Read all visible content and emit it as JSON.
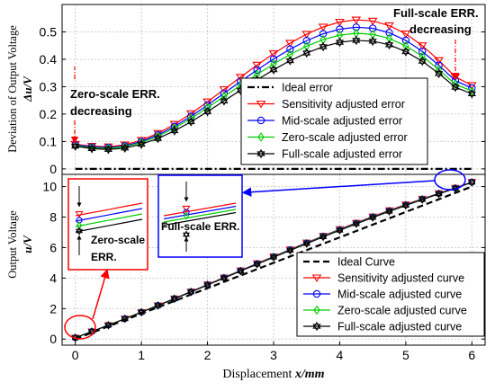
{
  "colors": {
    "sensitivity": "#ff0000",
    "midscale": "#0000ff",
    "zeroscale": "#00cc00",
    "fullscale": "#000000",
    "ideal": "#000000",
    "annotation_red": "#ff0000",
    "annotation_blue": "#0000ff"
  },
  "chart_data": [
    {
      "type": "line",
      "panel": "top",
      "ylabel_line1": "Deviation of Output Voltage",
      "ylabel_line2": "Δu/V",
      "xlim": [
        -0.2,
        6.2
      ],
      "ylim": [
        -0.02,
        0.6
      ],
      "y_ticks": [
        0,
        0.1,
        0.2,
        0.3,
        0.4,
        0.5
      ],
      "y_tick_labels": [
        "0",
        "0.1",
        "0.2",
        "0.3",
        "0.4",
        "0.5"
      ],
      "grid": true,
      "legend_placement": "center-right",
      "x": [
        0,
        0.25,
        0.5,
        0.75,
        1.0,
        1.25,
        1.5,
        1.75,
        2.0,
        2.25,
        2.5,
        2.75,
        3.0,
        3.25,
        3.5,
        3.75,
        4.0,
        4.25,
        4.5,
        4.75,
        5.0,
        5.25,
        5.5,
        5.75,
        6.0
      ],
      "series": [
        {
          "name": "Ideal error",
          "key": "ideal",
          "style": "dashdot",
          "marker": "none",
          "values": [
            0,
            0,
            0,
            0,
            0,
            0,
            0,
            0,
            0,
            0,
            0,
            0,
            0,
            0,
            0,
            0,
            0,
            0,
            0,
            0,
            0,
            0,
            0,
            0,
            0
          ]
        },
        {
          "name": "Sensitivity adjusted error",
          "key": "sensitivity",
          "style": "solid",
          "marker": "triangle-down",
          "values": [
            0.09,
            0.083,
            0.081,
            0.088,
            0.105,
            0.13,
            0.163,
            0.202,
            0.245,
            0.29,
            0.335,
            0.379,
            0.421,
            0.459,
            0.492,
            0.518,
            0.536,
            0.544,
            0.54,
            0.523,
            0.493,
            0.45,
            0.396,
            0.336,
            0.305
          ]
        },
        {
          "name": "Mid-scale adjusted error",
          "key": "midscale",
          "style": "solid",
          "marker": "circle",
          "values": [
            0.088,
            0.08,
            0.078,
            0.084,
            0.1,
            0.124,
            0.155,
            0.192,
            0.233,
            0.276,
            0.319,
            0.361,
            0.401,
            0.437,
            0.468,
            0.493,
            0.51,
            0.517,
            0.513,
            0.497,
            0.469,
            0.429,
            0.378,
            0.322,
            0.295
          ]
        },
        {
          "name": "Zero-scale adjusted error",
          "key": "zeroscale",
          "style": "solid",
          "marker": "diamond",
          "values": [
            0.085,
            0.077,
            0.075,
            0.081,
            0.096,
            0.119,
            0.149,
            0.184,
            0.223,
            0.264,
            0.305,
            0.345,
            0.383,
            0.418,
            0.448,
            0.472,
            0.488,
            0.495,
            0.491,
            0.476,
            0.449,
            0.411,
            0.362,
            0.309,
            0.284
          ]
        },
        {
          "name": "Full-scale adjusted error",
          "key": "fullscale",
          "style": "solid",
          "marker": "hexagram",
          "values": [
            0.083,
            0.074,
            0.071,
            0.076,
            0.09,
            0.111,
            0.139,
            0.172,
            0.209,
            0.248,
            0.287,
            0.325,
            0.362,
            0.395,
            0.423,
            0.446,
            0.462,
            0.469,
            0.466,
            0.453,
            0.428,
            0.393,
            0.348,
            0.298,
            0.274
          ]
        }
      ],
      "annotations": [
        {
          "text_line1": "Zero-scale ERR.",
          "text_line2": "decreasing",
          "color": "red-arrow"
        },
        {
          "text_line1": "Full-scale ERR.",
          "text_line2": "decreasing",
          "color": "red-arrow"
        }
      ]
    },
    {
      "type": "line",
      "panel": "bottom",
      "ylabel_line1": "Output Voltage",
      "ylabel_line2": "u/V",
      "xlabel_prefix": "Displacement ",
      "xlabel_var": "x/mm",
      "xlim": [
        -0.2,
        6.2
      ],
      "ylim": [
        -0.4,
        10.8
      ],
      "x_ticks": [
        0,
        1,
        2,
        3,
        4,
        5,
        6
      ],
      "x_tick_labels": [
        "0",
        "1",
        "2",
        "3",
        "4",
        "5",
        "6"
      ],
      "y_ticks": [
        0,
        2,
        4,
        6,
        8,
        10
      ],
      "y_tick_labels": [
        "0",
        "2",
        "4",
        "6",
        "8",
        "10"
      ],
      "grid": true,
      "legend_placement": "bottom-right",
      "x": [
        0,
        0.25,
        0.5,
        0.75,
        1.0,
        1.25,
        1.5,
        1.75,
        2.0,
        2.25,
        2.5,
        2.75,
        3.0,
        3.25,
        3.5,
        3.75,
        4.0,
        4.25,
        4.5,
        4.75,
        5.0,
        5.25,
        5.5,
        5.75,
        6.0
      ],
      "ideal_slope": 1.667,
      "series": [
        {
          "name": "Ideal Curve",
          "key": "ideal",
          "style": "dashed",
          "marker": "none"
        },
        {
          "name": "Sensitivity adjusted curve",
          "key": "sensitivity",
          "style": "solid",
          "marker": "triangle-down"
        },
        {
          "name": "Mid-scale adjusted curve",
          "key": "midscale",
          "style": "solid",
          "marker": "circle"
        },
        {
          "name": "Zero-scale adjusted curve",
          "key": "zeroscale",
          "style": "solid",
          "marker": "diamond"
        },
        {
          "name": "Full-scale adjusted curve",
          "key": "fullscale",
          "style": "solid",
          "marker": "hexagram"
        }
      ],
      "insets": [
        {
          "label_line1": "Zero-scale",
          "label_line2": "ERR.",
          "color": "red"
        },
        {
          "label": "Full-scale ERR.",
          "color": "blue"
        }
      ]
    }
  ]
}
